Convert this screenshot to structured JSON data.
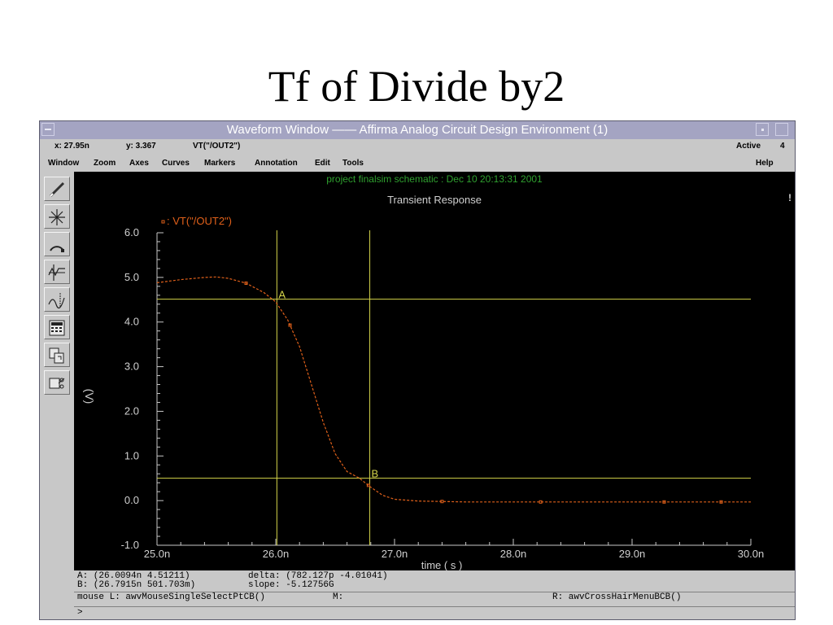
{
  "slide": {
    "title": "Tf of Divide by2"
  },
  "window": {
    "title": "Waveform Window —— Affirma Analog Circuit Design Environment (1)",
    "status": {
      "x": "x: 27.95n",
      "y": "y: 3.367",
      "signal": "VT(\"/OUT2\")",
      "mode": "Active",
      "count": "4"
    },
    "menu": [
      "Window",
      "Zoom",
      "Axes",
      "Curves",
      "Markers",
      "Annotation",
      "Edit",
      "Tools"
    ],
    "help": "Help",
    "tools": [
      "pencil-icon",
      "crosshair-star-icon",
      "arc-icon",
      "waveform-split-icon",
      "waveform-marker-icon",
      "calculator-icon",
      "copy-window-icon",
      "scissors-icon"
    ]
  },
  "plot": {
    "header": "project finalsim schematic : Dec 10 20:13:31 2001",
    "subtitle": "Transient Response",
    "corner": "!",
    "colors": {
      "background": "#000000",
      "axis": "#c8c8c8",
      "trace": "#e0601a",
      "cursor": "#d4d44a",
      "header": "#2fa02f",
      "text": "#d0d0d0"
    }
  },
  "chart_data": {
    "type": "line",
    "title": "Transient Response",
    "xlabel": "time ( s )",
    "ylabel": "(V)",
    "xlim": [
      25.0,
      30.0
    ],
    "ylim": [
      -1.0,
      6.0
    ],
    "x_ticks": [
      "25.0n",
      "26.0n",
      "27.0n",
      "28.0n",
      "29.0n",
      "30.0n"
    ],
    "y_ticks": [
      "6.0",
      "5.0",
      "4.0",
      "3.0",
      "2.0",
      "1.0",
      "0.0",
      "-1.0"
    ],
    "legend": "top-left",
    "series": [
      {
        "name": ": VT(\"/OUT2\")",
        "x": [
          25.0,
          25.2,
          25.4,
          25.5,
          25.6,
          25.75,
          25.9,
          26.0,
          26.1,
          26.2,
          26.3,
          26.4,
          26.5,
          26.6,
          26.7,
          26.8,
          26.9,
          27.0,
          27.2,
          27.4,
          27.6,
          28.0,
          28.23,
          28.6,
          29.0,
          29.27,
          29.5,
          29.75,
          30.0
        ],
        "y": [
          4.88,
          4.95,
          5.0,
          5.01,
          4.98,
          4.87,
          4.66,
          4.45,
          4.05,
          3.45,
          2.6,
          1.75,
          1.05,
          0.65,
          0.51,
          0.3,
          0.12,
          0.03,
          -0.01,
          -0.02,
          -0.03,
          -0.03,
          -0.03,
          -0.03,
          -0.03,
          -0.03,
          -0.03,
          -0.03,
          -0.03
        ],
        "markers_x": [
          25.75,
          26.12,
          26.78,
          27.4,
          28.23,
          29.27,
          29.75
        ]
      }
    ],
    "cursors": [
      {
        "label": "A",
        "x": 26.0094,
        "y": 4.51211
      },
      {
        "label": "B",
        "x": 26.7915,
        "y": 0.501703
      }
    ]
  },
  "info": {
    "a": "A: (26.0094n 4.51211)",
    "b": "B: (26.7915n 501.703m)",
    "delta": "delta: (782.127p -4.01041)",
    "slope": "slope: -5.12756G",
    "mouse_l": "mouse L: awvMouseSingleSelectPtCB()",
    "mouse_m": "M:",
    "mouse_r": "R: awvCrossHairMenuBCB()",
    "prompt": ">"
  }
}
